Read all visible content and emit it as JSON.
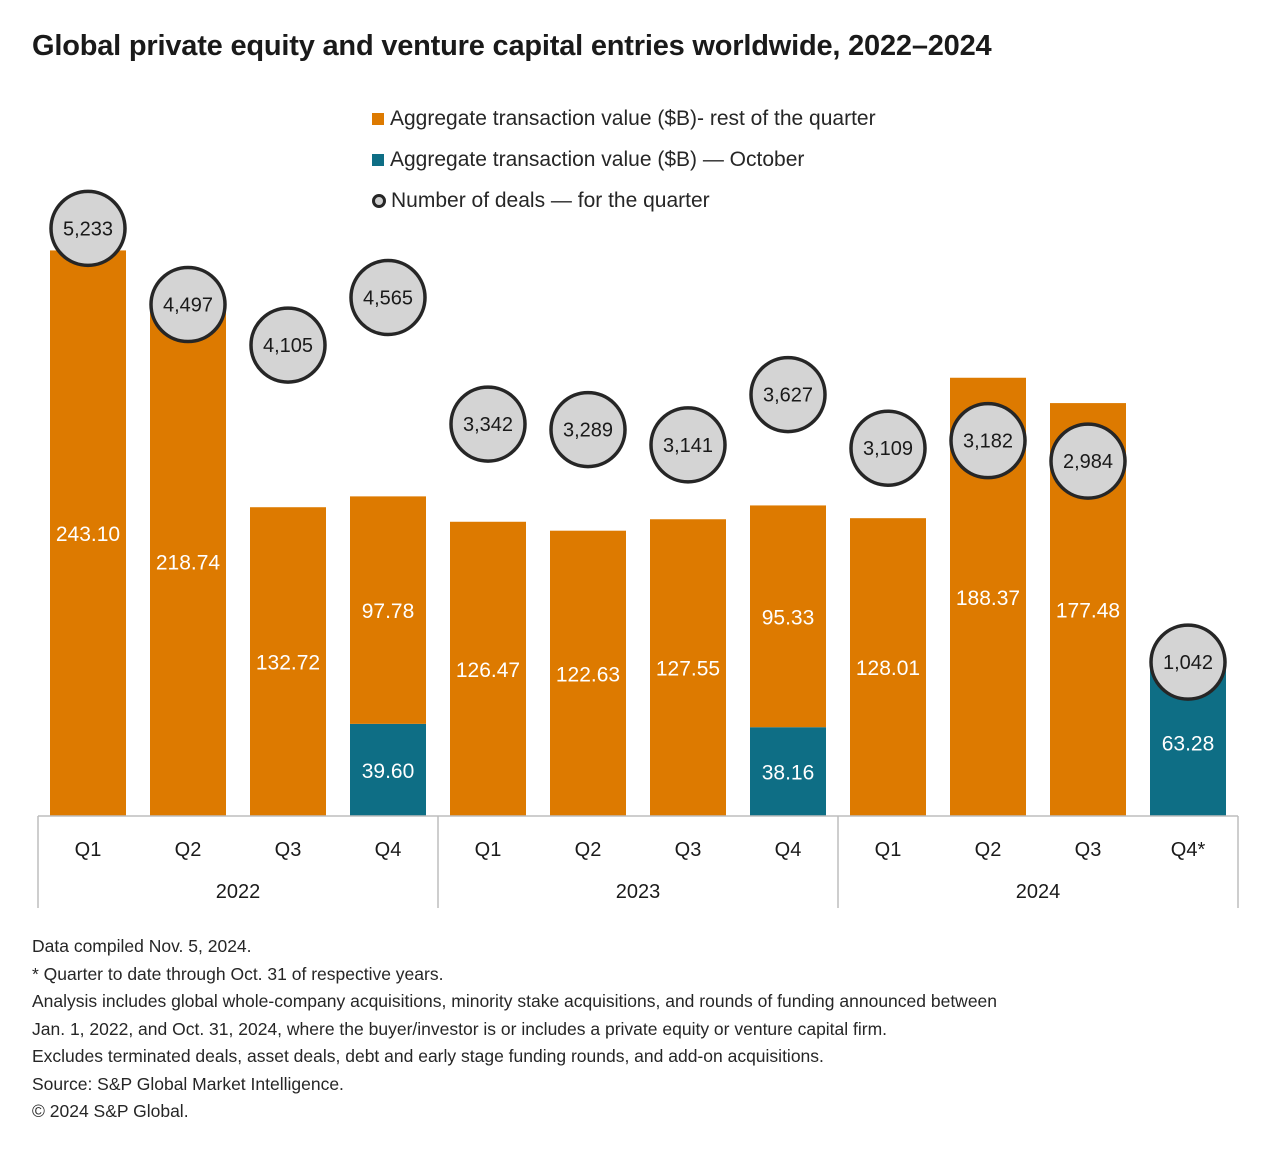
{
  "title": "Global private equity and venture capital entries worldwide, 2022–2024",
  "colors": {
    "rest": "#DD7A00",
    "october": "#0E6E85",
    "deal_fill": "#D4D4D4",
    "deal_stroke": "#262626"
  },
  "legend": [
    {
      "label": "Aggregate transaction value ($B)- rest of the quarter",
      "type": "square",
      "color": "#DD7A00"
    },
    {
      "label": "Aggregate transaction value ($B) — October",
      "type": "square",
      "color": "#0E6E85"
    },
    {
      "label": "Number of deals — for the quarter",
      "type": "circle",
      "color": "#262626"
    }
  ],
  "chart_data": {
    "type": "bar",
    "stacked": true,
    "groups": [
      {
        "label": "2022",
        "quarters": [
          "Q1",
          "Q2",
          "Q3",
          "Q4"
        ]
      },
      {
        "label": "2023",
        "quarters": [
          "Q1",
          "Q2",
          "Q3",
          "Q4"
        ]
      },
      {
        "label": "2024",
        "quarters": [
          "Q1",
          "Q2",
          "Q3",
          "Q4*"
        ]
      }
    ],
    "categories": [
      "Q1",
      "Q2",
      "Q3",
      "Q4",
      "Q1",
      "Q2",
      "Q3",
      "Q4",
      "Q1",
      "Q2",
      "Q3",
      "Q4*"
    ],
    "series": [
      {
        "name": "Aggregate transaction value ($B)- rest of the quarter",
        "values": [
          243.1,
          218.74,
          132.72,
          97.78,
          126.47,
          122.63,
          127.55,
          95.33,
          128.01,
          188.37,
          177.48,
          null
        ],
        "labels": [
          "243.10",
          "218.74",
          "132.72",
          "97.78",
          "126.47",
          "122.63",
          "127.55",
          "95.33",
          "128.01",
          "188.37",
          "177.48",
          ""
        ]
      },
      {
        "name": "Aggregate transaction value ($B) — October",
        "values": [
          null,
          null,
          null,
          39.6,
          null,
          null,
          null,
          38.16,
          null,
          null,
          null,
          63.28
        ],
        "labels": [
          "",
          "",
          "",
          "39.60",
          "",
          "",
          "",
          "38.16",
          "",
          "",
          "",
          "63.28"
        ]
      }
    ],
    "deals": {
      "name": "Number of deals — for the quarter",
      "values": [
        5233,
        4497,
        4105,
        4565,
        3342,
        3289,
        3141,
        3627,
        3109,
        3182,
        2984,
        1042
      ],
      "labels": [
        "5,233",
        "4,497",
        "4,105",
        "4,565",
        "3,342",
        "3,289",
        "3,141",
        "3,627",
        "3,109",
        "3,182",
        "2,984",
        "1,042"
      ]
    },
    "ylim": [
      0,
      245
    ]
  },
  "footnotes": [
    "Data compiled Nov. 5, 2024.",
    "* Quarter to date through Oct. 31 of respective years.",
    "Analysis includes global whole-company acquisitions, minority stake acquisitions, and rounds of funding announced between",
    "Jan. 1, 2022, and Oct. 31, 2024, where the buyer/investor is or includes a private equity or venture capital firm.",
    "Excludes terminated deals, asset deals, debt and early stage funding rounds, and add-on acquisitions.",
    "Source: S&P Global Market Intelligence.",
    "© 2024 S&P Global."
  ]
}
